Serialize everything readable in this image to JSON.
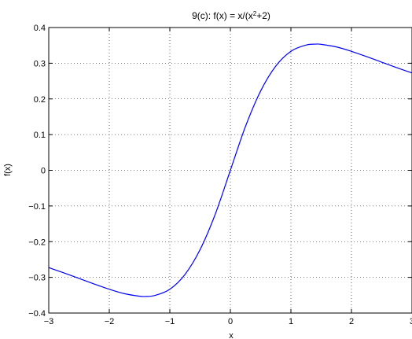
{
  "chart_data": {
    "type": "line",
    "title_prefix": "9(c): f(x) = x/(x",
    "title_superscript": "2",
    "title_suffix": "+2)",
    "xlabel": "x",
    "ylabel": "f(x)",
    "xlim": [
      -3,
      3
    ],
    "ylim": [
      -0.4,
      0.4
    ],
    "xticks": [
      -3,
      -2,
      -1,
      0,
      1,
      2,
      3
    ],
    "xtick_labels": [
      "−3",
      "−2",
      "−1",
      "0",
      "1",
      "2",
      "3"
    ],
    "yticks": [
      -0.4,
      -0.3,
      -0.2,
      -0.1,
      0,
      0.1,
      0.2,
      0.3,
      0.4
    ],
    "ytick_labels": [
      "−0.4",
      "−0.3",
      "−0.2",
      "−0.1",
      "0",
      "0.1",
      "0.2",
      "0.3",
      "0.4"
    ],
    "grid": true,
    "line_color": "#0000ff",
    "series": [
      {
        "x": [
          -3,
          -2.75,
          -2.5,
          -2.25,
          -2,
          -1.75,
          -1.5,
          -1.414,
          -1.25,
          -1,
          -0.75,
          -0.5,
          -0.25,
          0,
          0.25,
          0.5,
          0.75,
          1,
          1.25,
          1.414,
          1.5,
          1.75,
          2,
          2.25,
          2.5,
          2.75,
          3
        ],
        "values": [
          -0.2727,
          -0.2874,
          -0.303,
          -0.3185,
          -0.3333,
          -0.3457,
          -0.3529,
          -0.3536,
          -0.3509,
          -0.3333,
          -0.292,
          -0.2222,
          -0.1231,
          0,
          0.1231,
          0.2222,
          0.292,
          0.3333,
          0.3509,
          0.3536,
          0.3529,
          0.3457,
          0.3333,
          0.3185,
          0.303,
          0.2874,
          0.2727
        ]
      }
    ]
  }
}
